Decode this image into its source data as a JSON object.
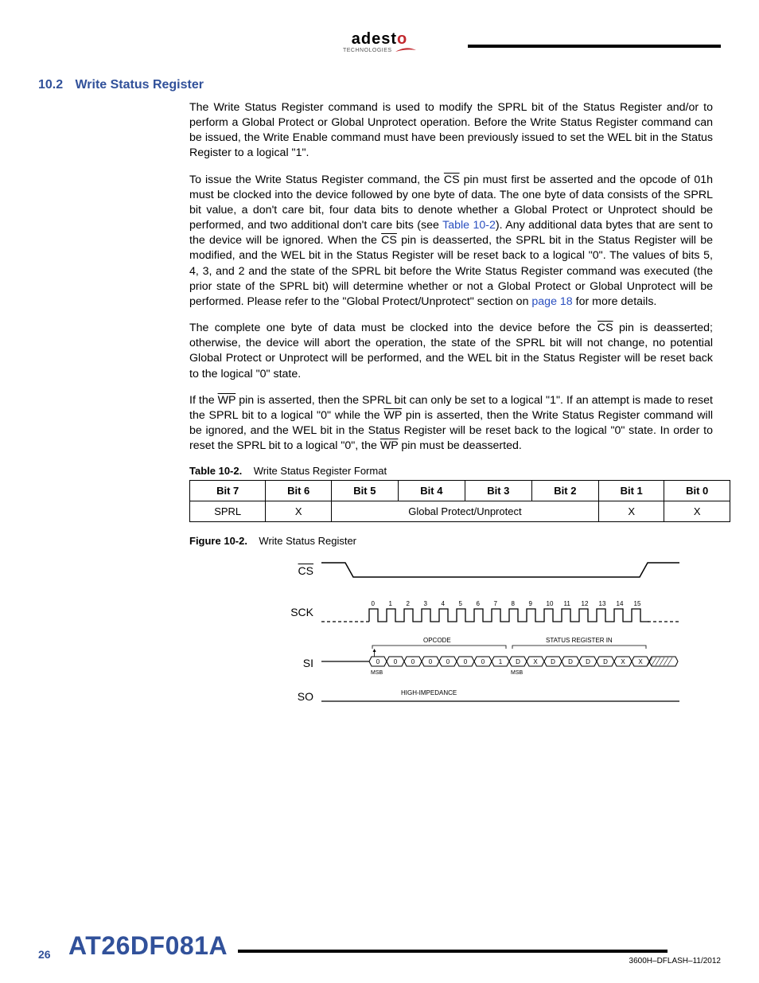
{
  "logo": {
    "name_part1": "adest",
    "name_part2": "o",
    "subtitle": "TECHNOLOGIES",
    "swoosh_color": "#c1272d"
  },
  "section": {
    "number": "10.2",
    "title": "Write Status Register"
  },
  "paragraphs": {
    "p1": "The Write Status Register command is used to modify the SPRL bit of the Status Register and/or to perform a Global Protect or Global Unprotect operation. Before the Write Status Register command can be issued, the Write Enable command must have been previously issued to set the WEL bit in the Status Register to a logical \"1\".",
    "p2a": "To issue the Write Status Register command, the ",
    "p2_cs1": "CS",
    "p2b": " pin must first be asserted and the opcode of 01h must be clocked into the device followed by one byte of data. The one byte of data consists of the SPRL bit value, a don't care bit, four data bits to denote whether a Global Protect or Unprotect should be performed, and two additional don't care bits (see ",
    "p2_link": "Table 10-2",
    "p2c": "). Any additional data bytes that are sent to the device will be ignored. When the ",
    "p2_cs2": "CS",
    "p2d": " pin is deasserted, the SPRL bit in the Status Register will be modified, and the WEL bit in the Status Register will be reset back to a logical \"0\". The values of bits 5, 4, 3, and 2 and the state of the SPRL bit before the Write Status Register command was executed (the prior state of the SPRL bit) will determine whether or not a Global Protect or Global Unprotect will be performed. Please refer to the \"Global Protect/Unprotect\" section on ",
    "p2_link2": "page 18",
    "p2e": " for more details.",
    "p3a": "The complete one byte of data must be clocked into the device before the ",
    "p3_cs": "CS",
    "p3b": " pin is deasserted; otherwise, the device will abort the operation, the state of the SPRL bit will not change, no potential Global Protect or Unprotect will be performed, and the WEL bit in the Status Register will be reset back to the logical \"0\" state.",
    "p4a": "If the ",
    "p4_wp1": "WP",
    "p4b": " pin is asserted, then the SPRL bit can only be set to a logical \"1\". If an attempt is made to reset the SPRL bit to a logical \"0\" while the ",
    "p4_wp2": "WP",
    "p4c": " pin is asserted, then the Write Status Register command will be ignored, and the WEL bit in the Status Register will be reset back to the logical \"0\" state. In order to reset the SPRL bit to a logical \"0\", the ",
    "p4_wp3": "WP",
    "p4d": " pin must be deasserted."
  },
  "table": {
    "caption_label": "Table 10-2.",
    "caption_text": "Write Status Register Format",
    "headers": [
      "Bit 7",
      "Bit 6",
      "Bit 5",
      "Bit 4",
      "Bit 3",
      "Bit 2",
      "Bit 1",
      "Bit 0"
    ],
    "row": {
      "c0": "SPRL",
      "c1": "X",
      "c2_5": "Global Protect/Unprotect",
      "c6": "X",
      "c7": "X"
    }
  },
  "figure": {
    "caption_label": "Figure 10-2.",
    "caption_text": "Write Status Register",
    "signals": {
      "cs": "CS",
      "sck": "SCK",
      "si": "SI",
      "so": "SO"
    },
    "clock_numbers": [
      "0",
      "1",
      "2",
      "3",
      "4",
      "5",
      "6",
      "7",
      "8",
      "9",
      "10",
      "11",
      "12",
      "13",
      "14",
      "15"
    ],
    "opcode_label": "OPCODE",
    "status_label": "STATUS REGISTER IN",
    "si_bits": [
      "0",
      "0",
      "0",
      "0",
      "0",
      "0",
      "0",
      "1",
      "D",
      "X",
      "D",
      "D",
      "D",
      "D",
      "X",
      "X"
    ],
    "msb_label": "MSB",
    "hi_z": "HIGH-IMPEDANCE"
  },
  "footer": {
    "page": "26",
    "part": "AT26DF081A",
    "docid": "3600H–DFLASH–11/2012"
  },
  "colors": {
    "heading": "#31519a",
    "link": "#2a4fbf",
    "logo_red": "#c1272d"
  }
}
